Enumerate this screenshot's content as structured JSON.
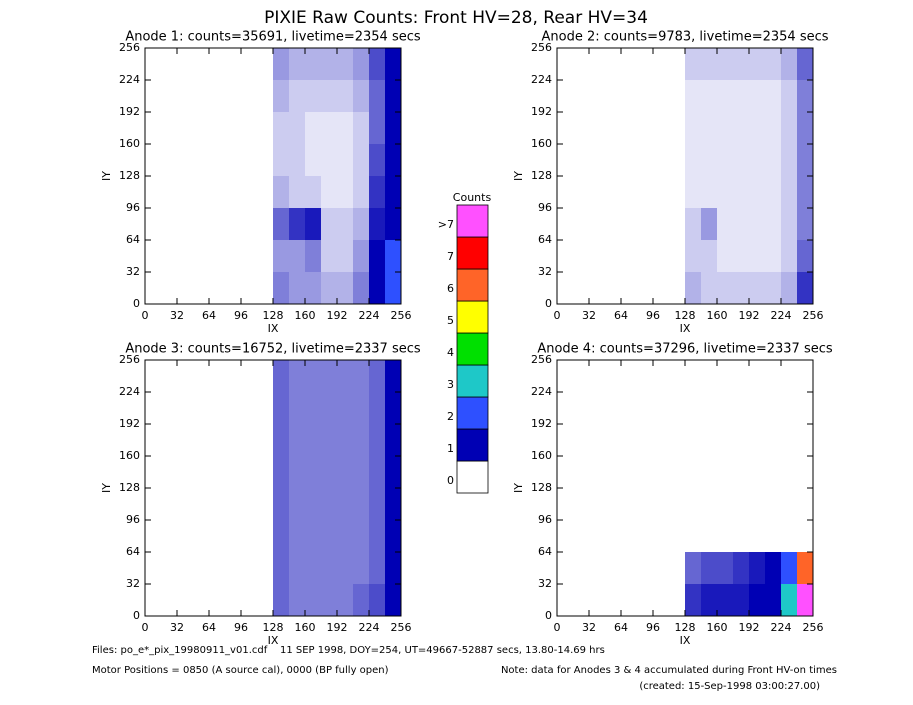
{
  "title": "PIXIE Raw Counts:  Front HV=28, Rear HV=34",
  "colorbar": {
    "title": "Counts",
    "levels": [
      "0",
      "1",
      "2",
      "3",
      "4",
      "5",
      "6",
      "7",
      ">7"
    ],
    "colors": [
      "#ffffff",
      "#0000b4",
      "#2e50ff",
      "#1ec8c8",
      "#00e000",
      "#ffff00",
      "#ff6428",
      "#ff0000",
      "#ff50ff"
    ]
  },
  "chart_data": [
    {
      "type": "heatmap",
      "title": "Anode 1: counts=35691, livetime=2354 secs",
      "xlabel": "IX",
      "ylabel": "IY",
      "xlim": [
        0,
        256
      ],
      "ylim": [
        0,
        256
      ],
      "xticks": [
        0,
        32,
        64,
        96,
        128,
        160,
        192,
        224,
        256
      ],
      "yticks": [
        0,
        32,
        64,
        96,
        128,
        160,
        192,
        224,
        256
      ],
      "xbins": [
        128,
        144,
        160,
        176,
        192,
        208,
        224,
        240,
        256
      ],
      "ybins": [
        0,
        32,
        64,
        96,
        128,
        160,
        192,
        224,
        256
      ],
      "values": [
        [
          0.5,
          0.4,
          0.4,
          0.3,
          0.3,
          0.5,
          1.2,
          2.0
        ],
        [
          0.4,
          0.4,
          0.5,
          0.2,
          0.2,
          0.4,
          1.0,
          2.0
        ],
        [
          0.6,
          0.8,
          0.9,
          0.2,
          0.2,
          0.3,
          0.9,
          1.8
        ],
        [
          0.3,
          0.2,
          0.2,
          0.1,
          0.1,
          0.2,
          0.8,
          1.8
        ],
        [
          0.2,
          0.2,
          0.1,
          0.1,
          0.1,
          0.2,
          0.7,
          1.6
        ],
        [
          0.2,
          0.2,
          0.1,
          0.1,
          0.1,
          0.2,
          0.6,
          1.6
        ],
        [
          0.3,
          0.2,
          0.2,
          0.2,
          0.2,
          0.3,
          0.6,
          1.5
        ],
        [
          0.4,
          0.3,
          0.3,
          0.3,
          0.3,
          0.4,
          0.7,
          1.5
        ]
      ]
    },
    {
      "type": "heatmap",
      "title": "Anode 2: counts=9783, livetime=2354 secs",
      "xlabel": "IX",
      "ylabel": "IY",
      "xlim": [
        0,
        256
      ],
      "ylim": [
        0,
        256
      ],
      "xticks": [
        0,
        32,
        64,
        96,
        128,
        160,
        192,
        224,
        256
      ],
      "yticks": [
        0,
        32,
        64,
        96,
        128,
        160,
        192,
        224,
        256
      ],
      "xbins": [
        128,
        144,
        160,
        176,
        192,
        208,
        224,
        240,
        256
      ],
      "ybins": [
        0,
        32,
        64,
        96,
        128,
        160,
        192,
        224,
        256
      ],
      "values": [
        [
          0.3,
          0.2,
          0.2,
          0.2,
          0.2,
          0.2,
          0.3,
          0.8
        ],
        [
          0.2,
          0.2,
          0.1,
          0.1,
          0.1,
          0.1,
          0.2,
          0.6
        ],
        [
          0.2,
          0.4,
          0.1,
          0.1,
          0.1,
          0.1,
          0.2,
          0.5
        ],
        [
          0.1,
          0.1,
          0.1,
          0.1,
          0.1,
          0.1,
          0.2,
          0.5
        ],
        [
          0.1,
          0.1,
          0.1,
          0.1,
          0.1,
          0.1,
          0.2,
          0.5
        ],
        [
          0.1,
          0.1,
          0.1,
          0.1,
          0.1,
          0.1,
          0.2,
          0.5
        ],
        [
          0.1,
          0.1,
          0.1,
          0.1,
          0.1,
          0.1,
          0.2,
          0.5
        ],
        [
          0.2,
          0.2,
          0.2,
          0.2,
          0.2,
          0.2,
          0.3,
          0.6
        ]
      ]
    },
    {
      "type": "heatmap",
      "title": "Anode 3: counts=16752, livetime=2337 secs",
      "xlabel": "IX",
      "ylabel": "IY",
      "xlim": [
        0,
        256
      ],
      "ylim": [
        0,
        256
      ],
      "xticks": [
        0,
        32,
        64,
        96,
        128,
        160,
        192,
        224,
        256
      ],
      "yticks": [
        0,
        32,
        64,
        96,
        128,
        160,
        192,
        224,
        256
      ],
      "xbins": [
        128,
        144,
        160,
        176,
        192,
        208,
        224,
        240,
        256
      ],
      "ybins": [
        0,
        32,
        64,
        96,
        128,
        160,
        192,
        224,
        256
      ],
      "values": [
        [
          0.6,
          0.5,
          0.5,
          0.5,
          0.5,
          0.6,
          0.7,
          1.2
        ],
        [
          0.6,
          0.5,
          0.5,
          0.5,
          0.5,
          0.5,
          0.6,
          1.0
        ],
        [
          0.6,
          0.5,
          0.5,
          0.5,
          0.5,
          0.5,
          0.6,
          1.0
        ],
        [
          0.6,
          0.5,
          0.5,
          0.5,
          0.5,
          0.5,
          0.6,
          1.0
        ],
        [
          0.6,
          0.5,
          0.5,
          0.5,
          0.5,
          0.5,
          0.6,
          1.0
        ],
        [
          0.6,
          0.5,
          0.5,
          0.5,
          0.5,
          0.5,
          0.6,
          1.0
        ],
        [
          0.6,
          0.5,
          0.5,
          0.5,
          0.5,
          0.5,
          0.6,
          1.0
        ],
        [
          0.6,
          0.5,
          0.5,
          0.5,
          0.5,
          0.5,
          0.6,
          1.0
        ]
      ]
    },
    {
      "type": "heatmap",
      "title": "Anode 4: counts=37296, livetime=2337 secs",
      "xlabel": "IX",
      "ylabel": "IY",
      "xlim": [
        0,
        256
      ],
      "ylim": [
        0,
        256
      ],
      "xticks": [
        0,
        32,
        64,
        96,
        128,
        160,
        192,
        224,
        256
      ],
      "yticks": [
        0,
        32,
        64,
        96,
        128,
        160,
        192,
        224,
        256
      ],
      "xbins": [
        128,
        144,
        160,
        176,
        192,
        208,
        224,
        240,
        256
      ],
      "ybins": [
        0,
        32,
        64,
        96,
        128,
        160,
        192,
        224,
        256
      ],
      "values": [
        [
          0.8,
          0.9,
          0.9,
          0.9,
          1.0,
          1.5,
          3.0,
          8.0
        ],
        [
          0.6,
          0.7,
          0.7,
          0.8,
          0.9,
          1.2,
          2.5,
          6.0
        ],
        [
          0,
          0,
          0,
          0,
          0,
          0,
          0,
          0
        ],
        [
          0,
          0,
          0,
          0,
          0,
          0,
          0,
          0
        ],
        [
          0,
          0,
          0,
          0,
          0,
          0,
          0,
          0
        ],
        [
          0,
          0,
          0,
          0,
          0,
          0,
          0,
          0
        ],
        [
          0,
          0,
          0,
          0,
          0,
          0,
          0,
          0
        ],
        [
          0,
          0,
          0,
          0,
          0,
          0,
          0,
          0
        ]
      ]
    }
  ],
  "footer": {
    "files": "Files: po_e*_pix_19980911_v01.cdf    11 SEP 1998, DOY=254, UT=49667-52887 secs, 13.80-14.69 hrs",
    "motor": "Motor Positions = 0850 (A source cal), 0000 (BP fully open)",
    "note": "Note: data for Anodes 3 & 4 accumulated during Front HV-on times",
    "created": "(created: 15-Sep-1998 03:00:27.00)"
  }
}
